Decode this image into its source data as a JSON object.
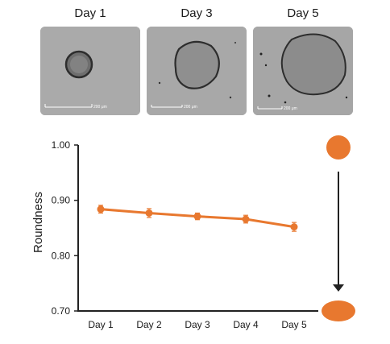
{
  "panels": [
    {
      "label": "Day 1",
      "scale_text": "200 μm"
    },
    {
      "label": "Day 3",
      "scale_text": "200 μm"
    },
    {
      "label": "Day 5",
      "scale_text": "200 μm"
    }
  ],
  "colors": {
    "series": "#e8782f",
    "axis": "#222222",
    "arrow": "#222222"
  },
  "chart_data": {
    "type": "line",
    "title": "",
    "xlabel": "",
    "ylabel": "Roundness",
    "categories": [
      "Day 1",
      "Day 2",
      "Day 3",
      "Day 4",
      "Day 5"
    ],
    "values": [
      0.884,
      0.877,
      0.871,
      0.866,
      0.852
    ],
    "error": [
      0.007,
      0.008,
      0.006,
      0.007,
      0.008
    ],
    "ylim": [
      0.7,
      1.0
    ],
    "yticks": [
      "1.00",
      "0.90",
      "0.80",
      "0.70"
    ],
    "ytick_values": [
      1.0,
      0.9,
      0.8,
      0.7
    ],
    "grid": false,
    "legend": "none",
    "shape_indicator": {
      "top": "round",
      "bottom": "elongated"
    }
  }
}
